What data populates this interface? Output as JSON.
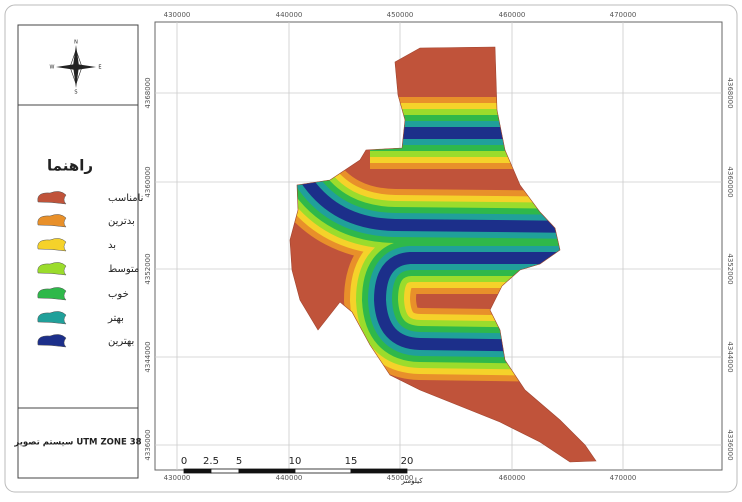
{
  "north_arrow": {
    "labels": [
      "N",
      "W",
      "E",
      "S"
    ]
  },
  "legend": {
    "title": "راهنما",
    "items": [
      {
        "label": "نامناسب",
        "color": "#c0533a"
      },
      {
        "label": "بدترین",
        "color": "#e8902a"
      },
      {
        "label": "بد",
        "color": "#f5d22a"
      },
      {
        "label": "متوسط",
        "color": "#9bdc2c"
      },
      {
        "label": "خوب",
        "color": "#2fb84a"
      },
      {
        "label": "بهتر",
        "color": "#20a09a"
      },
      {
        "label": "بهترین",
        "color": "#1c2f8a"
      }
    ]
  },
  "projection": {
    "label": "سیستم تصویر UTM ZONE 38"
  },
  "map": {
    "x_ticks": [
      "430000",
      "440000",
      "450000",
      "460000",
      "470000"
    ],
    "y_ticks": [
      "4368000",
      "4360000",
      "4352000",
      "4344000",
      "4336000"
    ],
    "scale_bar": {
      "ticks": [
        "0",
        "2.5",
        "5",
        "10",
        "15",
        "20"
      ],
      "unit": "کیلومتر"
    }
  }
}
